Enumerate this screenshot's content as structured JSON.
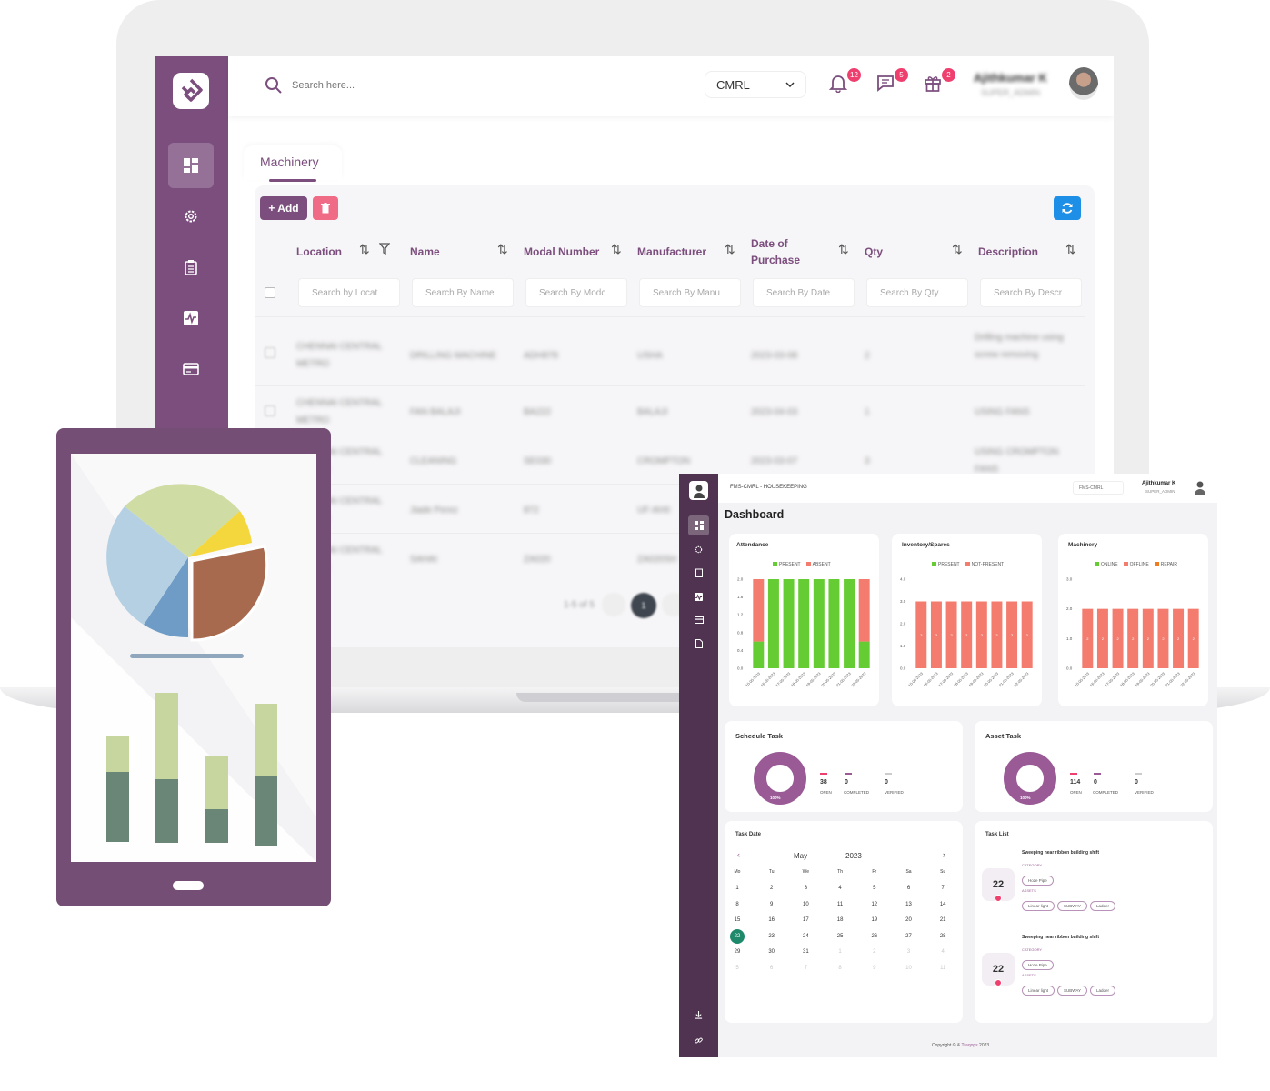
{
  "app": {
    "search_placeholder": "Search here...",
    "site_selector": "CMRL",
    "notifications": [
      {
        "name": "bell-icon",
        "count": "12"
      },
      {
        "name": "chat-icon",
        "count": "5"
      },
      {
        "name": "gift-icon",
        "count": "2"
      }
    ],
    "user": {
      "name": "Ajithkumar K",
      "role": "SUPER_ADMIN"
    }
  },
  "page": {
    "tab": "Machinery",
    "add_label": "+ Add",
    "columns": [
      "Location",
      "Name",
      "Modal Number",
      "Manufacturer",
      "Date of Purchase",
      "Qty",
      "Description"
    ],
    "filters": [
      "Search by Locat",
      "Search By Name",
      "Search By Modc",
      "Search By Manu",
      "Search By Date",
      "Search By Qty",
      "Search By Descr"
    ],
    "rows": [
      [
        "CHENNAI CENTRAL METRO",
        "DRILLING MACHINE",
        "ADH878",
        "USHA",
        "2023-03-08",
        "2",
        "Drilling machine using screw removing"
      ],
      [
        "CHENNAI CENTRAL METRO",
        "FAN BALAJI",
        "BA222",
        "BALAJI",
        "2023-04-03",
        "1",
        "USING FANS"
      ],
      [
        "CHENNAI CENTRAL METRO",
        "CLEANING",
        "SE030",
        "CROMPTON",
        "2023-03-07",
        "3",
        "USING CROMPTON FANS"
      ],
      [
        "CHENNAI CENTRAL METRO",
        "Jiade Perez",
        "872",
        "UF-AHII",
        "",
        "",
        ""
      ],
      [
        "CHENNAI CENTRAL METRO",
        "SAHAI",
        "ZA020",
        "ZA020SH",
        "",
        "",
        ""
      ]
    ],
    "pagination": {
      "info": "1-5 of 5",
      "current": "1"
    }
  },
  "dashboard": {
    "breadcrumb": "FMS-CMRL - HOUSEKEEPING",
    "site": "FMS-CMRL",
    "user_name": "Ajithkumar K",
    "user_role": "SUPER_ADMIN",
    "title": "Dashboard",
    "charts": [
      {
        "title": "Attendance",
        "legend": [
          "PRESENT",
          "ABSENT"
        ],
        "ticks": [
          "2.0",
          "1.6",
          "1.2",
          "0.8",
          "0.4",
          "0.0"
        ],
        "dates": [
          "15-05-2023",
          "16-05-2023",
          "17-05-2023",
          "18-05-2023",
          "19-05-2023",
          "20-05-2023",
          "21-05-2023",
          "22-05-2023"
        ]
      },
      {
        "title": "Inventory/Spares",
        "legend": [
          "PRESENT",
          "NOT-PRESENT"
        ],
        "ticks": [
          "4.0",
          "3.0",
          "2.0",
          "1.0",
          "0.0"
        ],
        "dates": [
          "15-05-2023",
          "16-05-2023",
          "17-05-2023",
          "18-05-2023",
          "19-05-2023",
          "20-05-2023",
          "21-05-2023",
          "22-05-2023"
        ]
      },
      {
        "title": "Machinery",
        "legend": [
          "ONLINE",
          "OFFLINE",
          "REPAIR"
        ],
        "ticks": [
          "3.0",
          "2.0",
          "1.0",
          "0.0"
        ],
        "dates": [
          "15-05-2023",
          "16-05-2023",
          "17-05-2023",
          "18-05-2023",
          "19-05-2023",
          "20-05-2023",
          "21-05-2023",
          "22-05-2023"
        ]
      }
    ],
    "chart_data": [
      {
        "type": "bar",
        "title": "Attendance",
        "categories": [
          "15-05-2023",
          "16-05-2023",
          "17-05-2023",
          "18-05-2023",
          "19-05-2023",
          "20-05-2023",
          "21-05-2023",
          "22-05-2023"
        ],
        "series": [
          {
            "name": "PRESENT",
            "values": [
              0.6,
              2,
              2,
              2,
              2,
              2,
              2,
              0.6
            ]
          },
          {
            "name": "ABSENT",
            "values": [
              1.4,
              0,
              0,
              0,
              0,
              0,
              0,
              1.4
            ]
          }
        ],
        "ylim": [
          0,
          2
        ]
      },
      {
        "type": "bar",
        "title": "Inventory/Spares",
        "categories": [
          "15-05-2023",
          "16-05-2023",
          "17-05-2023",
          "18-05-2023",
          "19-05-2023",
          "20-05-2023",
          "21-05-2023",
          "22-05-2023"
        ],
        "series": [
          {
            "name": "PRESENT",
            "values": [
              0,
              0,
              0,
              0,
              0,
              0,
              0,
              0
            ]
          },
          {
            "name": "NOT-PRESENT",
            "values": [
              3,
              3,
              3,
              3,
              3,
              3,
              3,
              3
            ]
          }
        ],
        "ylim": [
          0,
          4
        ]
      },
      {
        "type": "bar",
        "title": "Machinery",
        "categories": [
          "15-05-2023",
          "16-05-2023",
          "17-05-2023",
          "18-05-2023",
          "19-05-2023",
          "20-05-2023",
          "21-05-2023",
          "22-05-2023"
        ],
        "series": [
          {
            "name": "ONLINE",
            "values": [
              0,
              0,
              0,
              0,
              0,
              0,
              0,
              0
            ]
          },
          {
            "name": "OFFLINE",
            "values": [
              2,
              2,
              2,
              2,
              2,
              2,
              2,
              2
            ]
          },
          {
            "name": "REPAIR",
            "values": [
              0,
              0,
              0,
              0,
              0,
              0,
              0,
              0
            ]
          }
        ],
        "ylim": [
          0,
          3
        ]
      }
    ],
    "schedule": {
      "title": "Schedule Task",
      "pct": "100%",
      "stats": [
        {
          "value": "38",
          "label": "OPEN"
        },
        {
          "value": "0",
          "label": "COMPLETED"
        },
        {
          "value": "0",
          "label": "VERIFIED"
        }
      ]
    },
    "asset": {
      "title": "Asset Task",
      "pct": "100%",
      "stats": [
        {
          "value": "114",
          "label": "OPEN"
        },
        {
          "value": "0",
          "label": "COMPLETED"
        },
        {
          "value": "0",
          "label": "VERIFIED"
        }
      ]
    },
    "calendar": {
      "title": "Task Date",
      "month": "May",
      "year": "2023",
      "weekdays": [
        "Mo",
        "Tu",
        "We",
        "Th",
        "Fr",
        "Sa",
        "Su"
      ],
      "days": [
        "1",
        "2",
        "3",
        "4",
        "5",
        "6",
        "7",
        "8",
        "9",
        "10",
        "11",
        "12",
        "13",
        "14",
        "15",
        "16",
        "17",
        "18",
        "19",
        "20",
        "21",
        "22",
        "23",
        "24",
        "25",
        "26",
        "27",
        "28",
        "29",
        "30",
        "31",
        "1",
        "2",
        "3",
        "4",
        "5",
        "6",
        "7",
        "8",
        "9",
        "10",
        "11"
      ],
      "selected": "22"
    },
    "task_list": {
      "title": "Task List",
      "items": [
        {
          "day": "22",
          "title": "Sweeping near ribbon building shift",
          "category_label": "CATEGORY",
          "category": "Hoze Pipe",
          "assets_label": "ASSETS",
          "assets": [
            "Linear light",
            "SUBWAY",
            "Ladder"
          ]
        },
        {
          "day": "22",
          "title": "Sweeping near ribbon building shift",
          "category_label": "CATEGORY",
          "category": "Hoze Pipe",
          "assets_label": "ASSETS",
          "assets": [
            "Linear light",
            "SUBWAY",
            "Ladder"
          ]
        }
      ]
    },
    "footer": {
      "text": "Copyright © & ",
      "brand": "Traqops",
      "year": " 2023"
    }
  },
  "colors": {
    "brand_purple": "#7b4e7e",
    "dark_purple": "#4f3350",
    "present_green": "#66cc33",
    "absent_salmon": "#f47c6e",
    "repair_orange": "#f07c22",
    "badge_pink": "#ef3f6e",
    "refresh_blue": "#1e8fe6"
  }
}
